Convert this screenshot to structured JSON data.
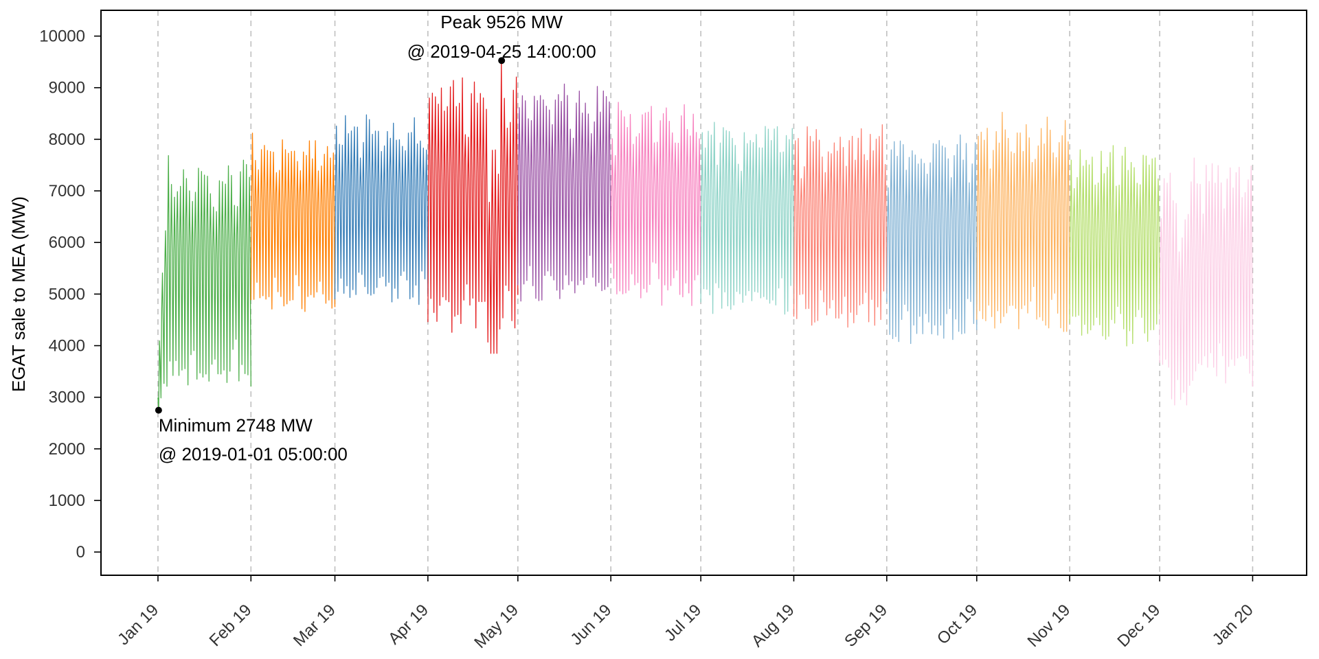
{
  "colors": {
    "background": "#ffffff",
    "axis": "#000000",
    "grid": "#bfbfbf",
    "tick_text": "#333333",
    "months": [
      "#4daf4a",
      "#ff7f00",
      "#377eb8",
      "#e41a1c",
      "#984ea3",
      "#f781bf",
      "#8dd3c7",
      "#fb8072",
      "#80b1d3",
      "#fdb462",
      "#b3de69",
      "#fccde5"
    ]
  },
  "chart_data": {
    "type": "line",
    "title": "",
    "xlabel": "",
    "ylabel": "EGAT sale to MEA (MW)",
    "ylim": [
      -450,
      10500
    ],
    "xlim": [
      "2018-12-13",
      "2020-01-19"
    ],
    "grid": "vertical dashed lines at month starts",
    "yticks": [
      0,
      1000,
      2000,
      3000,
      4000,
      5000,
      6000,
      7000,
      8000,
      9000,
      10000
    ],
    "ytick_labels": [
      "0",
      "1000",
      "2000",
      "3000",
      "4000",
      "5000",
      "6000",
      "7000",
      "8000",
      "9000",
      "10000"
    ],
    "xticks": [
      "2019-01-01",
      "2019-02-01",
      "2019-03-01",
      "2019-04-01",
      "2019-05-01",
      "2019-06-01",
      "2019-07-01",
      "2019-08-01",
      "2019-09-01",
      "2019-10-01",
      "2019-11-01",
      "2019-12-01",
      "2020-01-01"
    ],
    "xtick_labels": [
      "Jan 19",
      "Feb 19",
      "Mar 19",
      "Apr 19",
      "May 19",
      "Jun 19",
      "Jul 19",
      "Aug 19",
      "Sep 19",
      "Oct 19",
      "Nov 19",
      "Dec 19",
      "Jan 20"
    ],
    "series": [
      {
        "values": [
          {
            "month": "2019-01",
            "min": 2748,
            "max": 7950
          }
        ]
      },
      {
        "values": [
          {
            "month": "2019-02",
            "min": 4400,
            "max": 8250
          }
        ]
      },
      {
        "values": [
          {
            "month": "2019-03",
            "min": 4450,
            "max": 8700
          }
        ]
      },
      {
        "values": [
          {
            "month": "2019-04",
            "min": 3850,
            "max": 9526
          }
        ]
      },
      {
        "values": [
          {
            "month": "2019-05",
            "min": 4550,
            "max": 9300
          }
        ]
      },
      {
        "values": [
          {
            "month": "2019-06",
            "min": 4500,
            "max": 8850
          }
        ]
      },
      {
        "values": [
          {
            "month": "2019-07",
            "min": 4300,
            "max": 8550
          }
        ]
      },
      {
        "values": [
          {
            "month": "2019-08",
            "min": 4000,
            "max": 8450
          }
        ]
      },
      {
        "values": [
          {
            "month": "2019-09",
            "min": 3700,
            "max": 8350
          }
        ]
      },
      {
        "values": [
          {
            "month": "2019-10",
            "min": 3950,
            "max": 8650
          }
        ]
      },
      {
        "values": [
          {
            "month": "2019-11",
            "min": 3750,
            "max": 8050
          }
        ]
      },
      {
        "values": [
          {
            "month": "2019-12",
            "min": 2850,
            "max": 7850
          }
        ]
      }
    ],
    "annotations": {
      "peak": {
        "date": "2019-04-25 14:00:00",
        "value": 9526,
        "line1": "Peak 9526 MW",
        "line2": "@ 2019-04-25 14:00:00"
      },
      "minimum": {
        "date": "2019-01-01 05:00:00",
        "value": 2748,
        "line1": "Minimum 2748 MW",
        "line2": "@ 2019-01-01 05:00:00"
      }
    }
  }
}
